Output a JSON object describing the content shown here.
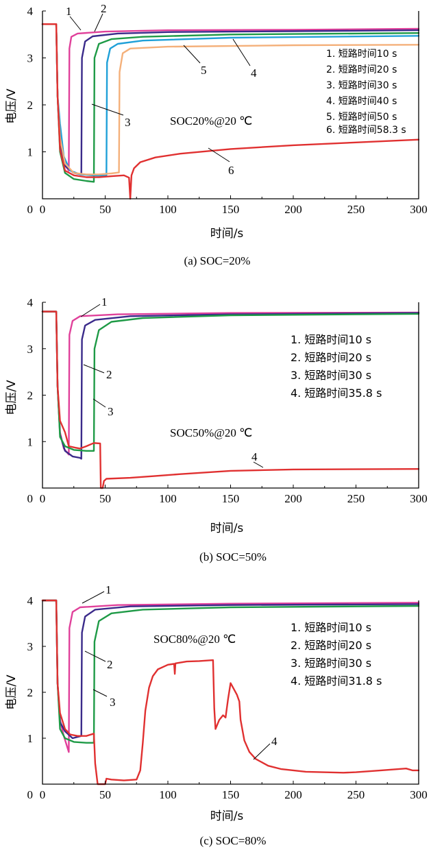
{
  "chart_data": [
    {
      "type": "line",
      "caption": "(a) SOC=20%",
      "xlabel": "时间/s",
      "ylabel": "电压/V",
      "xlim": [
        0,
        300
      ],
      "ylim": [
        0,
        4
      ],
      "xticks": [
        "0",
        "50",
        "100",
        "150",
        "200",
        "250",
        "300"
      ],
      "yticks": [
        "1",
        "2",
        "3",
        "4"
      ],
      "annotation": "SOC20%@20 ℃",
      "legend": [
        "1. 短路时间10 s",
        "2. 短路时间20 s",
        "3. 短路时间30 s",
        "4. 短路时间40 s",
        "5. 短路时间50 s",
        "6. 短路时间58.3 s"
      ],
      "series": [
        {
          "label": "1",
          "color": "#e0409a",
          "points": [
            [
              0,
              3.72
            ],
            [
              11,
              3.72
            ],
            [
              12,
              2.2
            ],
            [
              14,
              1.2
            ],
            [
              17,
              0.75
            ],
            [
              21,
              0.6
            ],
            [
              21.5,
              3.2
            ],
            [
              23,
              3.45
            ],
            [
              28,
              3.52
            ],
            [
              50,
              3.56
            ],
            [
              100,
              3.59
            ],
            [
              200,
              3.6
            ],
            [
              300,
              3.62
            ]
          ]
        },
        {
          "label": "2",
          "color": "#3a2a8a",
          "points": [
            [
              0,
              3.72
            ],
            [
              11,
              3.72
            ],
            [
              12,
              2.2
            ],
            [
              14,
              1.15
            ],
            [
              18,
              0.7
            ],
            [
              25,
              0.55
            ],
            [
              31,
              0.52
            ],
            [
              31.5,
              3.0
            ],
            [
              34,
              3.35
            ],
            [
              40,
              3.46
            ],
            [
              60,
              3.52
            ],
            [
              100,
              3.55
            ],
            [
              200,
              3.57
            ],
            [
              300,
              3.59
            ]
          ]
        },
        {
          "label": "3",
          "color": "#1e9a46",
          "points": [
            [
              0,
              3.72
            ],
            [
              11,
              3.72
            ],
            [
              12,
              2.2
            ],
            [
              14,
              1.0
            ],
            [
              18,
              0.55
            ],
            [
              25,
              0.42
            ],
            [
              35,
              0.38
            ],
            [
              41,
              0.36
            ],
            [
              41.5,
              3.0
            ],
            [
              45,
              3.3
            ],
            [
              55,
              3.4
            ],
            [
              80,
              3.45
            ],
            [
              150,
              3.5
            ],
            [
              300,
              3.53
            ]
          ]
        },
        {
          "label": "4",
          "color": "#1fa0d8",
          "points": [
            [
              0,
              3.72
            ],
            [
              11,
              3.72
            ],
            [
              12,
              2.2
            ],
            [
              14,
              1.6
            ],
            [
              17,
              0.9
            ],
            [
              22,
              0.6
            ],
            [
              30,
              0.52
            ],
            [
              40,
              0.5
            ],
            [
              51,
              0.49
            ],
            [
              51.5,
              2.9
            ],
            [
              54,
              3.2
            ],
            [
              60,
              3.3
            ],
            [
              80,
              3.37
            ],
            [
              150,
              3.43
            ],
            [
              300,
              3.47
            ]
          ]
        },
        {
          "label": "5",
          "color": "#f4b07a",
          "points": [
            [
              0,
              3.72
            ],
            [
              11,
              3.72
            ],
            [
              12,
              2.2
            ],
            [
              14,
              1.3
            ],
            [
              18,
              0.75
            ],
            [
              25,
              0.55
            ],
            [
              35,
              0.52
            ],
            [
              45,
              0.52
            ],
            [
              55,
              0.54
            ],
            [
              61,
              0.56
            ],
            [
              61.5,
              2.7
            ],
            [
              64,
              3.1
            ],
            [
              70,
              3.2
            ],
            [
              100,
              3.24
            ],
            [
              200,
              3.27
            ],
            [
              300,
              3.28
            ]
          ]
        },
        {
          "label": "6",
          "color": "#e03030",
          "points": [
            [
              0,
              3.72
            ],
            [
              11,
              3.72
            ],
            [
              12,
              2.2
            ],
            [
              14,
              1.05
            ],
            [
              18,
              0.6
            ],
            [
              25,
              0.5
            ],
            [
              35,
              0.46
            ],
            [
              45,
              0.46
            ],
            [
              55,
              0.48
            ],
            [
              65,
              0.5
            ],
            [
              69,
              0.45
            ],
            [
              70,
              0.0
            ],
            [
              71,
              0.5
            ],
            [
              73,
              0.65
            ],
            [
              78,
              0.78
            ],
            [
              90,
              0.88
            ],
            [
              110,
              0.96
            ],
            [
              150,
              1.06
            ],
            [
              200,
              1.14
            ],
            [
              250,
              1.2
            ],
            [
              300,
              1.26
            ]
          ]
        }
      ]
    },
    {
      "type": "line",
      "caption": "(b) SOC=50%",
      "xlabel": "时间/s",
      "ylabel": "电压/V",
      "xlim": [
        0,
        300
      ],
      "ylim": [
        0,
        4
      ],
      "xticks": [
        "0",
        "50",
        "100",
        "150",
        "200",
        "250",
        "300"
      ],
      "yticks": [
        "1",
        "2",
        "3",
        "4"
      ],
      "annotation": "SOC50%@20 ℃",
      "legend": [
        "1. 短路时间10 s",
        "2. 短路时间20 s",
        "3. 短路时间30 s",
        "4. 短路时间35.8 s"
      ],
      "series": [
        {
          "label": "1",
          "color": "#e0409a",
          "points": [
            [
              0,
              3.8
            ],
            [
              11,
              3.8
            ],
            [
              12,
              2.2
            ],
            [
              14,
              1.2
            ],
            [
              17,
              0.85
            ],
            [
              21,
              0.72
            ],
            [
              21.5,
              3.3
            ],
            [
              24,
              3.6
            ],
            [
              30,
              3.7
            ],
            [
              60,
              3.74
            ],
            [
              150,
              3.77
            ],
            [
              300,
              3.78
            ]
          ]
        },
        {
          "label": "2",
          "color": "#3a2a8a",
          "points": [
            [
              0,
              3.8
            ],
            [
              11,
              3.8
            ],
            [
              12,
              2.2
            ],
            [
              14,
              1.15
            ],
            [
              18,
              0.8
            ],
            [
              24,
              0.68
            ],
            [
              30,
              0.65
            ],
            [
              31,
              0.63
            ],
            [
              31.5,
              3.2
            ],
            [
              34,
              3.5
            ],
            [
              42,
              3.62
            ],
            [
              70,
              3.7
            ],
            [
              150,
              3.74
            ],
            [
              300,
              3.77
            ]
          ]
        },
        {
          "label": "3",
          "color": "#1e9a46",
          "points": [
            [
              0,
              3.8
            ],
            [
              11,
              3.8
            ],
            [
              12,
              2.2
            ],
            [
              14,
              1.1
            ],
            [
              18,
              0.9
            ],
            [
              25,
              0.82
            ],
            [
              35,
              0.8
            ],
            [
              41,
              0.8
            ],
            [
              41.5,
              3.0
            ],
            [
              45,
              3.4
            ],
            [
              55,
              3.58
            ],
            [
              80,
              3.66
            ],
            [
              150,
              3.72
            ],
            [
              300,
              3.75
            ]
          ]
        },
        {
          "label": "4",
          "color": "#e03030",
          "points": [
            [
              0,
              3.8
            ],
            [
              11,
              3.8
            ],
            [
              12,
              2.2
            ],
            [
              14,
              1.45
            ],
            [
              18,
              1.2
            ],
            [
              21,
              0.9
            ],
            [
              26,
              0.87
            ],
            [
              30,
              0.85
            ],
            [
              35,
              0.9
            ],
            [
              41,
              0.97
            ],
            [
              46,
              0.96
            ],
            [
              46.5,
              0.0
            ],
            [
              48,
              0.0
            ],
            [
              49,
              0.15
            ],
            [
              51,
              0.2
            ],
            [
              70,
              0.22
            ],
            [
              90,
              0.26
            ],
            [
              110,
              0.3
            ],
            [
              150,
              0.37
            ],
            [
              200,
              0.4
            ],
            [
              300,
              0.41
            ]
          ]
        }
      ]
    },
    {
      "type": "line",
      "caption": "(c) SOC=80%",
      "xlabel": "时间/s",
      "ylabel": "电压/V",
      "xlim": [
        0,
        300
      ],
      "ylim": [
        0,
        4
      ],
      "xticks": [
        "0",
        "50",
        "100",
        "150",
        "200",
        "250",
        "300"
      ],
      "yticks": [
        "1",
        "2",
        "3",
        "4"
      ],
      "annotation": "SOC80%@20 ℃",
      "legend": [
        "1. 短路时间10 s",
        "2. 短路时间20 s",
        "3. 短路时间30 s",
        "4. 短路时间31.8 s"
      ],
      "series": [
        {
          "label": "1",
          "color": "#e0409a",
          "points": [
            [
              0,
              4.0
            ],
            [
              11,
              4.0
            ],
            [
              12,
              2.2
            ],
            [
              14,
              1.4
            ],
            [
              17,
              1.05
            ],
            [
              21,
              0.7
            ],
            [
              21.5,
              3.4
            ],
            [
              24,
              3.75
            ],
            [
              30,
              3.85
            ],
            [
              60,
              3.9
            ],
            [
              150,
              3.93
            ],
            [
              300,
              3.95
            ]
          ]
        },
        {
          "label": "2",
          "color": "#3a2a8a",
          "points": [
            [
              0,
              4.0
            ],
            [
              11,
              4.0
            ],
            [
              12,
              2.2
            ],
            [
              14,
              1.35
            ],
            [
              18,
              1.15
            ],
            [
              24,
              1.0
            ],
            [
              31,
              1.05
            ],
            [
              31.5,
              3.3
            ],
            [
              34,
              3.65
            ],
            [
              42,
              3.8
            ],
            [
              70,
              3.87
            ],
            [
              150,
              3.9
            ],
            [
              300,
              3.92
            ]
          ]
        },
        {
          "label": "3",
          "color": "#1e9a46",
          "points": [
            [
              0,
              4.0
            ],
            [
              11,
              4.0
            ],
            [
              12,
              2.2
            ],
            [
              14,
              1.2
            ],
            [
              18,
              1.0
            ],
            [
              25,
              0.92
            ],
            [
              35,
              0.9
            ],
            [
              41,
              0.9
            ],
            [
              41.5,
              3.1
            ],
            [
              45,
              3.55
            ],
            [
              55,
              3.72
            ],
            [
              80,
              3.8
            ],
            [
              150,
              3.85
            ],
            [
              300,
              3.88
            ]
          ]
        },
        {
          "label": "4",
          "color": "#e03030",
          "points": [
            [
              0,
              4.0
            ],
            [
              11,
              4.0
            ],
            [
              12,
              2.2
            ],
            [
              14,
              1.55
            ],
            [
              18,
              1.2
            ],
            [
              22,
              1.08
            ],
            [
              28,
              1.05
            ],
            [
              35,
              1.05
            ],
            [
              41,
              1.1
            ],
            [
              42,
              0.45
            ],
            [
              44,
              0.0
            ],
            [
              50,
              0.0
            ],
            [
              51,
              0.12
            ],
            [
              55,
              0.1
            ],
            [
              65,
              0.08
            ],
            [
              75,
              0.1
            ],
            [
              78,
              0.3
            ],
            [
              80,
              0.9
            ],
            [
              82,
              1.6
            ],
            [
              85,
              2.1
            ],
            [
              88,
              2.35
            ],
            [
              92,
              2.5
            ],
            [
              100,
              2.6
            ],
            [
              105,
              2.62
            ],
            [
              105.5,
              2.4
            ],
            [
              106,
              2.63
            ],
            [
              115,
              2.67
            ],
            [
              125,
              2.68
            ],
            [
              136,
              2.7
            ],
            [
              137,
              1.65
            ],
            [
              138,
              1.2
            ],
            [
              141,
              1.4
            ],
            [
              144,
              1.5
            ],
            [
              146,
              1.45
            ],
            [
              148,
              1.85
            ],
            [
              150,
              2.2
            ],
            [
              152,
              2.1
            ],
            [
              155,
              1.95
            ],
            [
              157,
              1.8
            ],
            [
              158,
              1.4
            ],
            [
              161,
              0.95
            ],
            [
              165,
              0.7
            ],
            [
              170,
              0.55
            ],
            [
              180,
              0.4
            ],
            [
              190,
              0.33
            ],
            [
              210,
              0.27
            ],
            [
              240,
              0.25
            ],
            [
              250,
              0.26
            ],
            [
              270,
              0.3
            ],
            [
              290,
              0.34
            ],
            [
              295,
              0.3
            ],
            [
              300,
              0.3
            ]
          ]
        }
      ]
    }
  ]
}
